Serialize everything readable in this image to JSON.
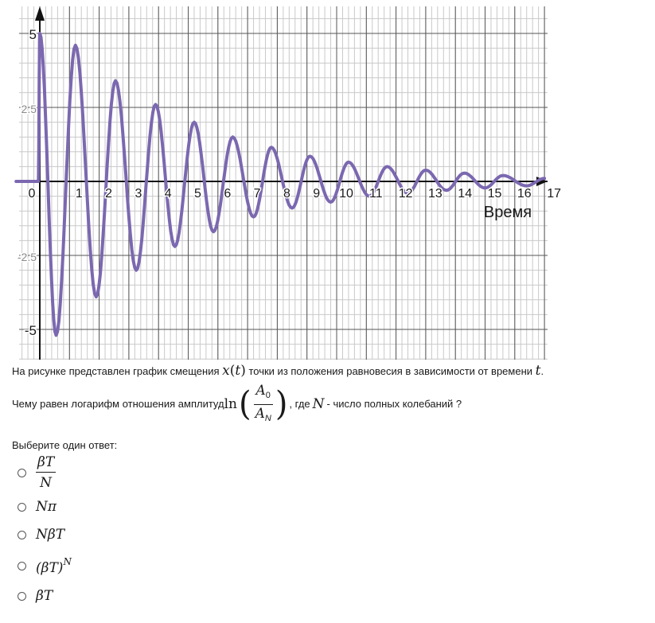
{
  "chart_data": {
    "type": "line",
    "title": "",
    "xlabel": "Время",
    "ylabel": "",
    "xlim": [
      0,
      17
    ],
    "ylim": [
      -5.4,
      5.4
    ],
    "x_ticks": [
      "0",
      "1",
      "2",
      "3",
      "4",
      "5",
      "6",
      "7",
      "8",
      "9",
      "10",
      "11",
      "12",
      "13",
      "14",
      "15",
      "16",
      "17"
    ],
    "y_ticks": [
      "5",
      "2.5",
      "-2.5",
      "-5"
    ],
    "grid": true,
    "series": [
      {
        "color": "#7b68b0",
        "points": [
          [
            0.0,
            5.0
          ],
          [
            0.55,
            -5.2
          ],
          [
            1.2,
            4.6
          ],
          [
            1.9,
            -3.9
          ],
          [
            2.55,
            3.4
          ],
          [
            3.25,
            -3.0
          ],
          [
            3.9,
            2.6
          ],
          [
            4.55,
            -2.2
          ],
          [
            5.2,
            2.0
          ],
          [
            5.85,
            -1.7
          ],
          [
            6.5,
            1.5
          ],
          [
            7.2,
            -1.2
          ],
          [
            7.8,
            1.15
          ],
          [
            8.5,
            -0.9
          ],
          [
            9.1,
            0.85
          ],
          [
            9.8,
            -0.7
          ],
          [
            10.4,
            0.65
          ],
          [
            11.1,
            -0.5
          ],
          [
            11.7,
            0.5
          ],
          [
            12.4,
            -0.4
          ],
          [
            13.0,
            0.38
          ],
          [
            13.7,
            -0.3
          ],
          [
            14.3,
            0.28
          ],
          [
            15.0,
            -0.22
          ],
          [
            15.6,
            0.2
          ],
          [
            16.4,
            -0.15
          ],
          [
            17.0,
            0.1
          ]
        ]
      }
    ]
  },
  "question": {
    "line1_a": "На рисунке представлен график смещения ",
    "line1_x": "x",
    "line1_t": "t",
    "line1_b": " точки из положения равновесия в зависимости от времени ",
    "line1_tend": "t",
    "line1_dot": ".",
    "line2_a": "Чему равен логарифм отношения амплитуд ",
    "ln": "ln",
    "A": "A",
    "sub0": "0",
    "subN": "N",
    "line2_b": ", где ",
    "N": "N",
    "line2_c": " - число полных колебаний ?"
  },
  "answers": {
    "prompt": "Выберите один ответ:",
    "opt1_num": "βT",
    "opt1_den": "N",
    "opt2": "Nπ",
    "opt3": "NβT",
    "opt4": "(βT)",
    "opt4_sup": "N",
    "opt5": "βT"
  }
}
